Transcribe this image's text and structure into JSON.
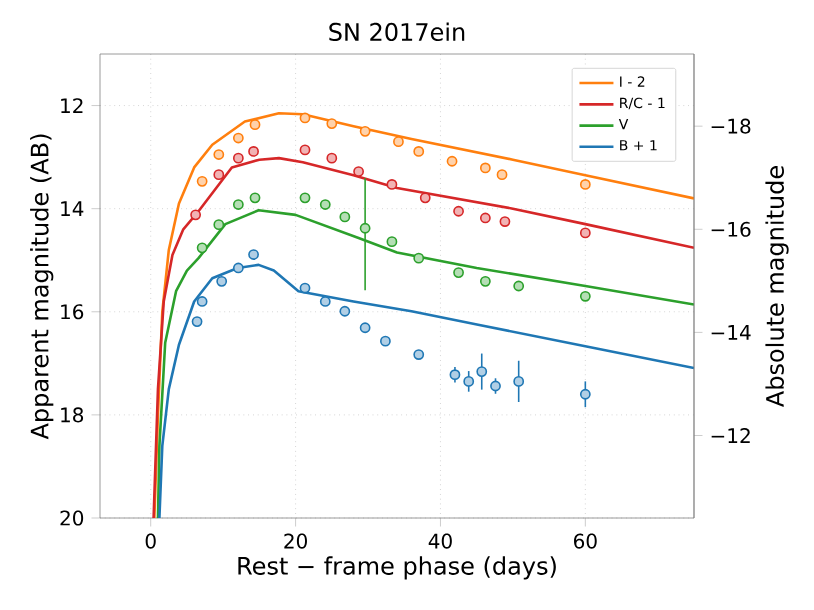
{
  "chart_data": {
    "type": "line",
    "title": "SN 2017ein",
    "xlabel": "Rest − frame phase (days)",
    "ylabel": "Apparent magnitude (AB)",
    "y2label": "Absolute magnitude",
    "xlim": [
      -7,
      75
    ],
    "xticks": [
      0,
      20,
      40,
      60
    ],
    "ylim": [
      20,
      11
    ],
    "yticks": [
      12,
      14,
      16,
      18,
      20
    ],
    "y2lim": [
      -10.4,
      -19.4
    ],
    "y2ticks": [
      {
        "value": -18,
        "label": "−18"
      },
      {
        "value": -16,
        "label": "−16"
      },
      {
        "value": -14,
        "label": "−14"
      },
      {
        "value": -12,
        "label": "−12"
      }
    ],
    "grid": true,
    "legend": "top right",
    "series": [
      {
        "name": "I - 2",
        "color": "#ff7f0e",
        "x": [
          0.5,
          1.0,
          1.6,
          2.5,
          3.9,
          6,
          8.5,
          13,
          17.7,
          21,
          28,
          36,
          50,
          60,
          75
        ],
        "values": [
          20,
          18,
          16,
          14.8,
          13.9,
          13.2,
          12.76,
          12.31,
          12.15,
          12.17,
          12.4,
          12.65,
          13.05,
          13.35,
          13.8
        ]
      },
      {
        "name": "R/C - 1",
        "color": "#d62728",
        "x": [
          0.4,
          1.0,
          1.8,
          3,
          4.5,
          6.6,
          11.2,
          15,
          17.7,
          21,
          28,
          34,
          50,
          60,
          75
        ],
        "values": [
          20,
          17.5,
          15.8,
          14.9,
          14.4,
          14.05,
          13.2,
          13.05,
          13.02,
          13.1,
          13.35,
          13.6,
          14.0,
          14.3,
          14.76
        ]
      },
      {
        "name": "V",
        "color": "#2ca02c",
        "x": [
          1,
          1.2,
          2,
          3.5,
          5,
          6.6,
          10.3,
          14.9,
          20,
          28.7,
          34,
          45,
          60,
          75
        ],
        "values": [
          20,
          18.6,
          16.6,
          15.6,
          15.2,
          14.96,
          14.3,
          14.03,
          14.12,
          14.57,
          14.85,
          15.15,
          15.5,
          15.86
        ]
      },
      {
        "name": "B + 1",
        "color": "#1f77b4",
        "x": [
          1.2,
          1.6,
          2.5,
          3.9,
          6,
          8.5,
          12,
          14.9,
          17,
          20.4,
          28,
          36,
          45.2,
          60,
          75
        ],
        "values": [
          20,
          18.6,
          17.5,
          16.64,
          15.8,
          15.35,
          15.15,
          15.09,
          15.2,
          15.6,
          15.8,
          15.99,
          16.25,
          16.67,
          17.09
        ]
      },
      {
        "type": "scatter",
        "color": "#ff7f0e",
        "x": [
          7.1,
          9.4,
          12.1,
          14.4,
          21.3,
          25,
          29.6,
          34.2,
          37,
          41.6,
          46.2,
          48.5,
          60
        ],
        "values": [
          13.47,
          12.95,
          12.63,
          12.37,
          12.24,
          12.35,
          12.5,
          12.7,
          12.89,
          13.08,
          13.21,
          13.34,
          13.53
        ]
      },
      {
        "type": "scatter",
        "color": "#d62728",
        "x": [
          6.2,
          9.4,
          12.1,
          14.2,
          21.3,
          25,
          28.7,
          33.3,
          37.9,
          42.5,
          46.2,
          48.9,
          60
        ],
        "values": [
          14.12,
          13.34,
          13.02,
          12.89,
          12.86,
          13.02,
          13.28,
          13.53,
          13.79,
          14.05,
          14.18,
          14.25,
          14.47
        ]
      },
      {
        "type": "scatter",
        "color": "#2ca02c",
        "x": [
          7.1,
          9.4,
          12.1,
          14.4,
          21.3,
          24.1,
          26.8,
          29.6,
          33.3,
          37,
          42.5,
          46.2,
          50.8,
          60
        ],
        "values": [
          14.76,
          14.31,
          13.92,
          13.79,
          13.79,
          13.92,
          14.16,
          14.38,
          14.64,
          14.96,
          15.24,
          15.41,
          15.5,
          15.7
        ],
        "errors": [
          null,
          null,
          null,
          null,
          null,
          null,
          null,
          [
            13.41,
            15.58
          ],
          null,
          null,
          null,
          null,
          null,
          null
        ]
      },
      {
        "type": "scatter",
        "color": "#1f77b4",
        "x": [
          6.4,
          7.1,
          9.8,
          12.1,
          14.2,
          21.3,
          24.1,
          26.8,
          29.6,
          32.4,
          37,
          42,
          43.9,
          45.7,
          47.6,
          50.8,
          60
        ],
        "values": [
          16.19,
          15.8,
          15.41,
          15.15,
          14.89,
          15.54,
          15.8,
          15.99,
          16.31,
          16.57,
          16.83,
          17.22,
          17.35,
          17.16,
          17.44,
          17.35,
          17.6
        ],
        "errors": [
          null,
          null,
          null,
          null,
          null,
          null,
          null,
          null,
          null,
          null,
          null,
          0.15,
          0.2,
          0.35,
          0.15,
          0.4,
          0.25
        ]
      }
    ]
  }
}
